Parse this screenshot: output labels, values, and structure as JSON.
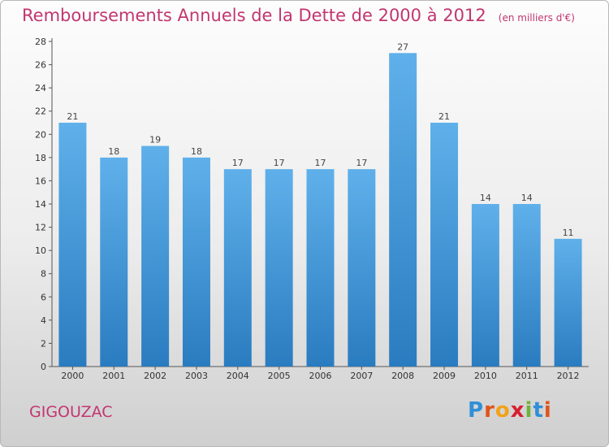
{
  "header": {
    "title": "Remboursements Annuels de la Dette de 2000 à 2012",
    "unit": "(en milliers d'€)"
  },
  "footer": {
    "commune": "GIGOUZAC",
    "brand": "Proxiti"
  },
  "colors": {
    "accent": "#c2366f",
    "bar_top": "#5fb0ea",
    "bar_bottom": "#2a7cc0",
    "logo_letters": [
      "#2f8fd8",
      "#e0541b",
      "#f2a21a",
      "#d81f2e",
      "#6fb23c",
      "#2f8fd8",
      "#e0541b"
    ]
  },
  "chart_data": {
    "type": "bar",
    "categories": [
      "2000",
      "2001",
      "2002",
      "2003",
      "2004",
      "2005",
      "2006",
      "2007",
      "2008",
      "2009",
      "2010",
      "2011",
      "2012"
    ],
    "values": [
      21,
      18,
      19,
      18,
      17,
      17,
      17,
      17,
      27,
      21,
      14,
      14,
      11
    ],
    "title": "Remboursements Annuels de la Dette de 2000 à 2012",
    "unit": "(en milliers d'€)",
    "xlabel": "",
    "ylabel": "",
    "ylim": [
      0,
      28
    ],
    "yticks": [
      0,
      2,
      4,
      6,
      8,
      10,
      12,
      14,
      16,
      18,
      20,
      22,
      24,
      26,
      28
    ],
    "grid": false,
    "legend": "none"
  }
}
